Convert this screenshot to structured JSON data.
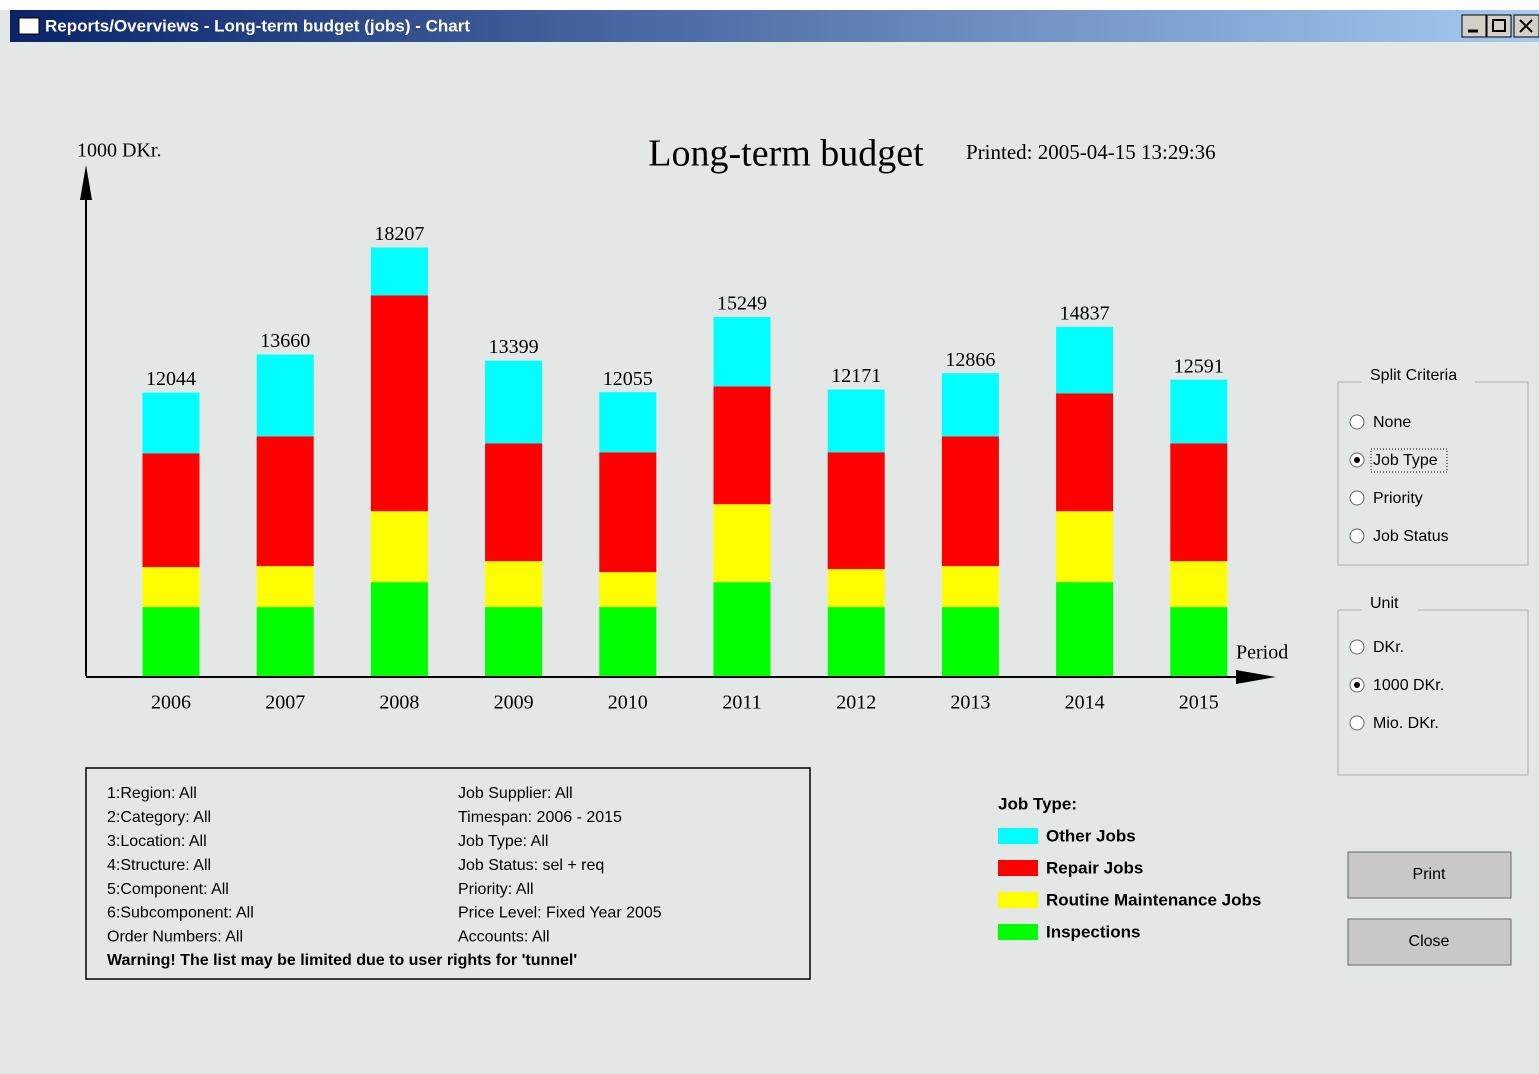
{
  "window": {
    "title": "Reports/Overviews - Long-term budget (jobs)   - Chart"
  },
  "chart_data": {
    "type": "stacked_bar",
    "title": "Long-term budget",
    "subtitle": "Printed: 2005-04-15 13:29:36",
    "y_label": "1000 DKr.",
    "x_label": "Period",
    "legend_title": "Job Type:",
    "categories": [
      "2006",
      "2007",
      "2008",
      "2009",
      "2010",
      "2011",
      "2012",
      "2013",
      "2014",
      "2015"
    ],
    "series": [
      {
        "name": "Other Jobs",
        "color": "#00ffff",
        "values": [
          2580,
          3475,
          2038,
          3511,
          2549,
          2942,
          2665,
          2681,
          2827,
          2703
        ]
      },
      {
        "name": "Repair Jobs",
        "color": "#ff0000",
        "values": [
          4838,
          5517,
          9167,
          5008,
          5093,
          5008,
          4965,
          5517,
          5008,
          5008
        ]
      },
      {
        "name": "Routine Maintenance Jobs",
        "color": "#ffff00",
        "values": [
          1698,
          1740,
          3013,
          1952,
          1485,
          3310,
          1613,
          1740,
          3013,
          1952
        ]
      },
      {
        "name": "Inspections",
        "color": "#00ff00",
        "values": [
          2928,
          2928,
          3989,
          2928,
          2928,
          3989,
          2928,
          2928,
          3989,
          2928
        ]
      }
    ],
    "totals": [
      12044,
      13660,
      18207,
      13399,
      12055,
      15249,
      12171,
      12866,
      14837,
      12591
    ],
    "ylim": [
      0,
      21500
    ]
  },
  "split_criteria": {
    "label": "Split Criteria",
    "options": [
      "None",
      "Job Type",
      "Priority",
      "Job Status"
    ],
    "selected": 1
  },
  "unit": {
    "label": "Unit",
    "options": [
      "DKr.",
      "1000 DKr.",
      "Mio. DKr."
    ],
    "selected": 1
  },
  "filters": {
    "left": [
      "1:Region: All",
      "2:Category: All",
      "3:Location: All",
      "4:Structure: All",
      "5:Component: All",
      "6:Subcomponent: All",
      "Order Numbers: All"
    ],
    "right": [
      "Job Supplier: All",
      "Timespan: 2006 - 2015",
      "Job Type: All",
      "Job Status: sel + req",
      "Priority: All",
      "Price Level: Fixed Year 2005",
      "Accounts: All"
    ],
    "warning": "Warning! The list may be limited due to user rights for 'tunnel'"
  },
  "buttons": [
    "Print",
    "Close"
  ]
}
